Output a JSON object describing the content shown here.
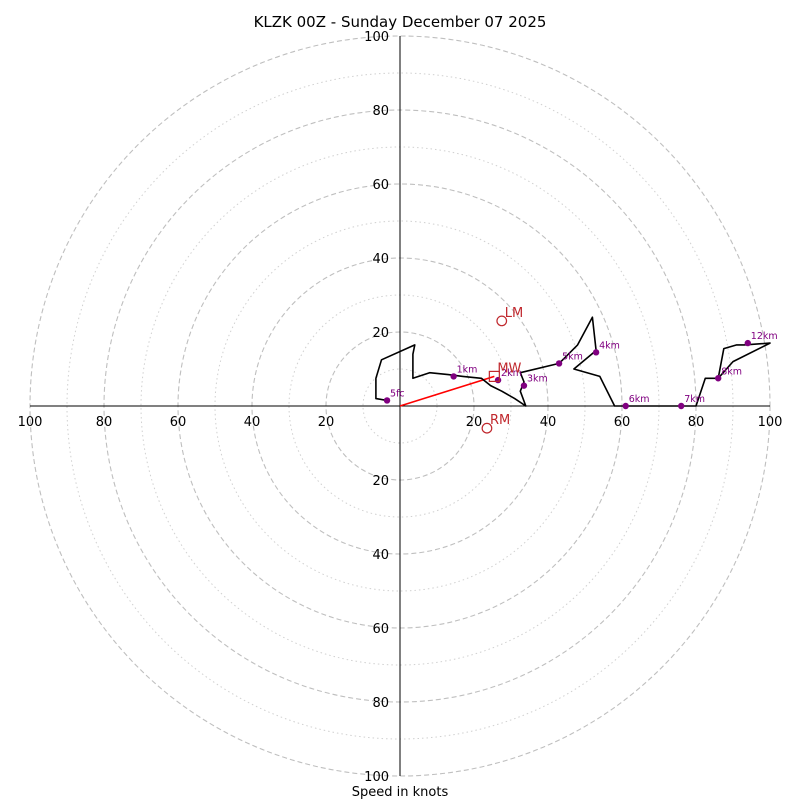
{
  "chart_data": {
    "type": "hodograph",
    "title": "KLZK 00Z - Sunday December 07 2025",
    "xlabel": "Speed in knots",
    "max_speed": 100,
    "rings": [
      20,
      40,
      60,
      80,
      100
    ],
    "minor_rings": [
      10,
      30,
      50,
      70,
      90
    ],
    "tick_labels": {
      "left": [
        "100",
        "80",
        "60",
        "40",
        "20"
      ],
      "right": [
        "20",
        "40",
        "60",
        "80",
        "100"
      ],
      "up": [
        "20",
        "40",
        "60",
        "80",
        "100"
      ],
      "down": [
        "20",
        "40",
        "60",
        "80",
        "100"
      ]
    },
    "profile": [
      [
        -3.5,
        1.5
      ],
      [
        -6.5,
        2.0
      ],
      [
        -6.5,
        7.5
      ],
      [
        -5.0,
        12.5
      ],
      [
        4.0,
        16.5
      ],
      [
        3.5,
        14.0
      ],
      [
        3.5,
        7.5
      ],
      [
        8.0,
        9.0
      ],
      [
        13.0,
        8.5
      ],
      [
        17.0,
        8.0
      ],
      [
        22.0,
        7.5
      ],
      [
        24.5,
        5.5
      ],
      [
        27.5,
        4.0
      ],
      [
        31.0,
        2.0
      ],
      [
        34.0,
        0.0
      ],
      [
        32.5,
        4.0
      ],
      [
        33.5,
        6.5
      ],
      [
        32.5,
        9.0
      ],
      [
        43.0,
        11.5
      ],
      [
        48.0,
        16.5
      ],
      [
        52.0,
        24.0
      ],
      [
        53.0,
        15.0
      ],
      [
        47.0,
        10.0
      ],
      [
        54.0,
        8.0
      ],
      [
        58.0,
        0.0
      ],
      [
        76.0,
        0.0
      ],
      [
        80.0,
        0.0
      ],
      [
        82.5,
        7.5
      ],
      [
        86.0,
        7.5
      ],
      [
        87.5,
        15.5
      ],
      [
        91.0,
        16.5
      ],
      [
        93.0,
        16.5
      ],
      [
        100.0,
        17.0
      ],
      [
        90.0,
        12.0
      ],
      [
        86.0,
        7.5
      ]
    ],
    "heights": [
      {
        "label": "5fc",
        "u": -3.5,
        "v": 1.5
      },
      {
        "label": "1km",
        "u": 14.5,
        "v": 8.0
      },
      {
        "label": "2km",
        "u": 26.5,
        "v": 7.0
      },
      {
        "label": "3km",
        "u": 33.5,
        "v": 5.5
      },
      {
        "label": "5km",
        "u": 43.0,
        "v": 11.5
      },
      {
        "label": "4km",
        "u": 53.0,
        "v": 14.5
      },
      {
        "label": "6km",
        "u": 61.0,
        "v": 0.0
      },
      {
        "label": "7km",
        "u": 76.0,
        "v": 0.0
      },
      {
        "label": "8km",
        "u": 86.0,
        "v": 7.5
      },
      {
        "label": "12km",
        "u": 94.0,
        "v": 17.0
      }
    ],
    "motions": [
      {
        "label": "LM",
        "u": 27.5,
        "v": 23.0,
        "marker": "circle"
      },
      {
        "label": "MW",
        "u": 25.5,
        "v": 8.0,
        "marker": "square"
      },
      {
        "label": "RM",
        "u": 23.5,
        "v": -6.0,
        "marker": "circle"
      }
    ],
    "shear_vector": {
      "from": [
        0,
        0
      ],
      "to": [
        25.5,
        8.0
      ]
    },
    "colors": {
      "profile": "#000000",
      "heights": "#800080",
      "motions": "#c0282d",
      "shear": "#ff0000",
      "grid": "#bfbfbf"
    }
  }
}
